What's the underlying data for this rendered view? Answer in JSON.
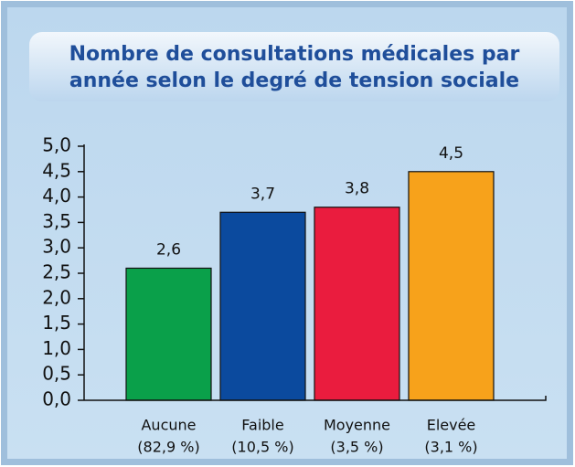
{
  "chart_data": {
    "type": "bar",
    "title": [
      "Nombre de consultations médicales par",
      "année selon le degré de tension sociale"
    ],
    "categories": [
      [
        "Aucune",
        "(82,9 %)"
      ],
      [
        "Faible",
        "(10,5 %)"
      ],
      [
        "Moyenne",
        "(3,5 %)"
      ],
      [
        "Elevée",
        "(3,1 %)"
      ]
    ],
    "values": [
      2.6,
      3.7,
      3.8,
      4.5
    ],
    "value_labels": [
      "2,6",
      "3,7",
      "3,8",
      "4,5"
    ],
    "colors": [
      "#0aa04a",
      "#0b4a9e",
      "#ea1c3e",
      "#f7a21b"
    ],
    "ylim": [
      0,
      5
    ],
    "yticks": [
      {
        "value": 0,
        "label": "0,0"
      },
      {
        "value": 0.5,
        "label": "0,5"
      },
      {
        "value": 1,
        "label": "1,0"
      },
      {
        "value": 1.5,
        "label": "1,5"
      },
      {
        "value": 2,
        "label": "2,0"
      },
      {
        "value": 2.5,
        "label": "2,5"
      },
      {
        "value": 3,
        "label": "3,0"
      },
      {
        "value": 3.5,
        "label": "3,5"
      },
      {
        "value": 4,
        "label": "4,0"
      },
      {
        "value": 4.5,
        "label": "4,5"
      },
      {
        "value": 5,
        "label": "5,0"
      }
    ]
  }
}
